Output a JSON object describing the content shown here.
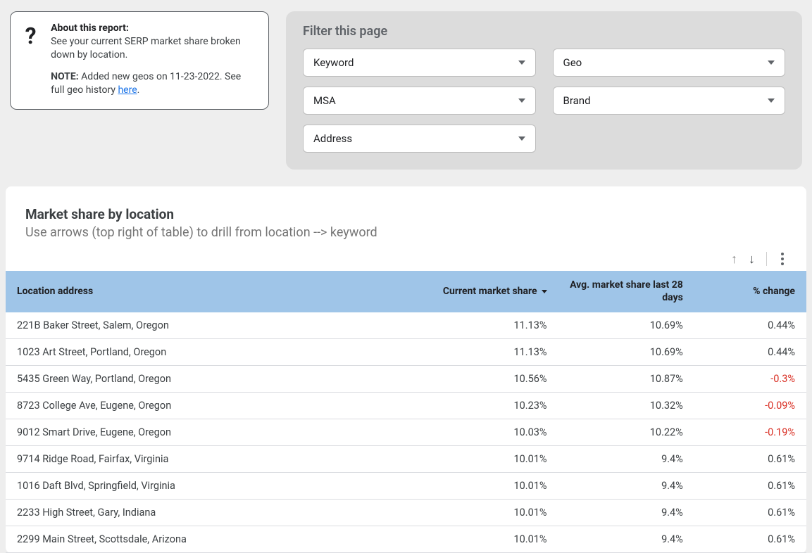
{
  "about": {
    "icon_glyph": "?",
    "title": "About this report:",
    "body": "See your current SERP market share broken down by location.",
    "note_label": "NOTE:",
    "note_text": " Added new geos on 11-23-2022. See full geo history ",
    "link_text": "here",
    "link_suffix": "."
  },
  "filter": {
    "title": "Filter this page",
    "dropdowns": [
      {
        "id": "keyword",
        "label": "Keyword"
      },
      {
        "id": "geo",
        "label": "Geo"
      },
      {
        "id": "msa",
        "label": "MSA"
      },
      {
        "id": "brand",
        "label": "Brand"
      },
      {
        "id": "address",
        "label": "Address"
      }
    ]
  },
  "table_section": {
    "title": "Market share by location",
    "subtitle": "Use arrows (top right of table) to drill from location --> keyword"
  },
  "table": {
    "header_bg": "#9fc5e8",
    "negative_color": "#d93025",
    "col_widths": [
      "52%",
      "17%",
      "17%",
      "14%"
    ],
    "columns": [
      {
        "id": "address",
        "label": "Location address",
        "align": "left"
      },
      {
        "id": "current",
        "label": "Current market share",
        "align": "right",
        "sorted_desc": true
      },
      {
        "id": "avg28",
        "label": "Avg. market share last 28 days",
        "align": "right"
      },
      {
        "id": "change",
        "label": "% change",
        "align": "right"
      }
    ],
    "rows": [
      {
        "address": "221B Baker Street, Salem, Oregon",
        "current": "11.13%",
        "avg28": "10.69%",
        "change": "0.44%",
        "neg": false
      },
      {
        "address": "1023 Art Street, Portland, Oregon",
        "current": "11.13%",
        "avg28": "10.69%",
        "change": "0.44%",
        "neg": false
      },
      {
        "address": "5435 Green Way, Portland, Oregon",
        "current": "10.56%",
        "avg28": "10.87%",
        "change": "-0.3%",
        "neg": true
      },
      {
        "address": "8723 College Ave, Eugene, Oregon",
        "current": "10.23%",
        "avg28": "10.32%",
        "change": "-0.09%",
        "neg": true
      },
      {
        "address": "9012 Smart Drive, Eugene, Oregon",
        "current": "10.03%",
        "avg28": "10.22%",
        "change": "-0.19%",
        "neg": true
      },
      {
        "address": "9714 Ridge Road, Fairfax, Virginia",
        "current": "10.01%",
        "avg28": "9.4%",
        "change": "0.61%",
        "neg": false
      },
      {
        "address": "1016 Daft Blvd, Springfield, Virginia",
        "current": "10.01%",
        "avg28": "9.4%",
        "change": "0.61%",
        "neg": false
      },
      {
        "address": "2233 High Street, Gary, Indiana",
        "current": "10.01%",
        "avg28": "9.4%",
        "change": "0.61%",
        "neg": false
      },
      {
        "address": "2299 Main Street, Scottsdale, Arizona",
        "current": "10.01%",
        "avg28": "9.4%",
        "change": "0.61%",
        "neg": false
      }
    ]
  }
}
